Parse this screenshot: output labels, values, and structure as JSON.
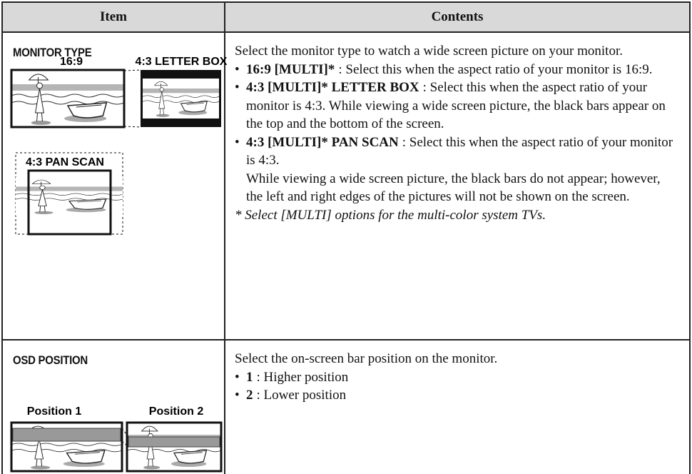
{
  "table": {
    "headers": [
      "Item",
      "Contents"
    ],
    "rows": [
      {
        "item": "MONITOR TYPE",
        "illustration_labels": [
          "16:9",
          "4:3 LETTER BOX",
          "4:3 PAN SCAN"
        ],
        "intro": "Select the monitor type to watch a wide screen picture on your monitor.",
        "options": [
          {
            "term": "16:9 [MULTI]*",
            "text": ": Select this when the aspect ratio of your monitor is 16:9."
          },
          {
            "term": "4:3 [MULTI]* LETTER BOX",
            "text": ": Select this when the aspect ratio of your monitor is 4:3. While viewing a wide screen picture, the black bars appear on the top and the bottom of the screen."
          },
          {
            "term": "4:3 [MULTI]* PAN SCAN",
            "text": ": Select this when the aspect ratio of your monitor is 4:3.",
            "detail": "While viewing a wide screen picture, the black bars do not appear; however, the left and right edges of the pictures will not be shown on the screen."
          }
        ],
        "note": "* Select [MULTI] options for the multi-color system TVs."
      },
      {
        "item": "OSD POSITION",
        "illustration_labels": [
          "Position 1",
          "Position 2"
        ],
        "intro": "Select the on-screen bar position on the monitor.",
        "options": [
          {
            "term": "1",
            "text": ":  Higher position"
          },
          {
            "term": "2",
            "text": ":  Lower position"
          }
        ]
      }
    ]
  }
}
